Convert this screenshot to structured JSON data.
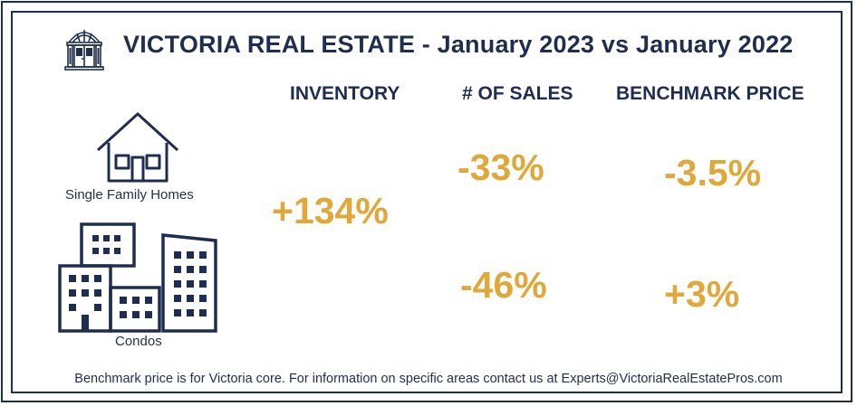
{
  "header": {
    "title": "VICTORIA REAL ESTATE - January 2023 vs January 2022",
    "logo_icon": "doorway-icon"
  },
  "columns": {
    "inventory": "INVENTORY",
    "sales": "# OF SALES",
    "benchmark": "BENCHMARK PRICE"
  },
  "categories": {
    "single_family": {
      "label": "Single Family Homes",
      "icon": "house-icon",
      "sales_change": "-33%",
      "benchmark_change": "-3.5%"
    },
    "condos": {
      "label": "Condos",
      "icon": "buildings-icon",
      "sales_change": "-46%",
      "benchmark_change": "+3%"
    }
  },
  "inventory_change": "+134%",
  "footer": "Benchmark price is for Victoria core. For information on specific areas contact us at Experts@VictoriaRealEstatePros.com",
  "colors": {
    "navy": "#1f2d4e",
    "gold": "#e0a83a"
  }
}
